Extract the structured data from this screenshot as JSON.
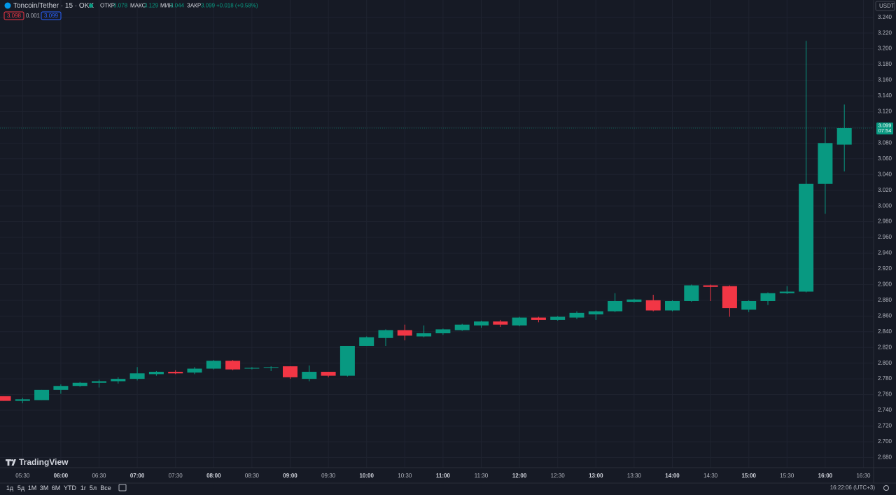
{
  "header": {
    "symbol": "Toncoin/Tether · 15 · OKX",
    "open_label": "ОТКР",
    "open": 3.078,
    "high_label": "МАКС",
    "high": 3.129,
    "low_label": "МИН",
    "low": 3.044,
    "close_label": "ЗАКР",
    "close": 3.099,
    "change": "+0.018 (+0.58%)",
    "bid": 3.098,
    "spread": 0.001,
    "ask": 3.099,
    "currency": "USDT"
  },
  "chart_data": {
    "type": "candlestick",
    "categories": [
      null,
      "05:30",
      null,
      "06:00",
      null,
      "06:30",
      null,
      "07:00",
      null,
      "07:30",
      null,
      "08:00",
      null,
      "08:30",
      null,
      "09:00",
      null,
      "09:30",
      null,
      "10:00",
      null,
      "10:30",
      null,
      "11:00",
      null,
      "11:30",
      null,
      "12:00",
      null,
      "12:30",
      null,
      "13:00",
      null,
      "13:30",
      null,
      "14:00",
      null,
      "14:30",
      null,
      "15:00",
      null,
      "15:30",
      null,
      "16:00",
      null,
      "16:30"
    ],
    "open": [
      2.758,
      2.752,
      2.753,
      2.766,
      2.771,
      2.775,
      2.777,
      2.78,
      2.786,
      2.789,
      2.788,
      2.793,
      2.803,
      2.793,
      2.795,
      2.796,
      2.78,
      2.789,
      2.784,
      2.822,
      2.832,
      2.842,
      2.834,
      2.838,
      2.842,
      2.848,
      2.853,
      2.848,
      2.858,
      2.855,
      2.858,
      2.862,
      2.866,
      2.878,
      2.88,
      2.867,
      2.879,
      2.899,
      2.898,
      2.868,
      2.879,
      2.889,
      2.891,
      3.028,
      3.078,
      null
    ],
    "high": [
      2.758,
      2.756,
      2.766,
      2.773,
      2.776,
      2.779,
      2.782,
      2.795,
      2.79,
      2.791,
      2.795,
      2.804,
      2.804,
      2.795,
      2.796,
      2.796,
      2.797,
      2.789,
      2.822,
      2.834,
      2.843,
      2.849,
      2.848,
      2.844,
      2.85,
      2.854,
      2.855,
      2.859,
      2.859,
      2.86,
      2.866,
      2.867,
      2.889,
      2.882,
      2.887,
      2.88,
      2.9,
      2.9,
      2.899,
      2.88,
      2.89,
      2.898,
      3.21,
      3.1,
      3.129,
      null
    ],
    "low": [
      2.752,
      2.749,
      2.753,
      2.761,
      2.77,
      2.769,
      2.774,
      2.778,
      2.784,
      2.786,
      2.786,
      2.792,
      2.791,
      2.792,
      2.79,
      2.78,
      2.777,
      2.782,
      2.783,
      2.822,
      2.822,
      2.829,
      2.833,
      2.836,
      2.841,
      2.845,
      2.846,
      2.847,
      2.852,
      2.854,
      2.856,
      2.855,
      2.865,
      2.877,
      2.866,
      2.866,
      2.878,
      2.879,
      2.859,
      2.865,
      2.874,
      2.888,
      2.89,
      2.99,
      3.044,
      null
    ],
    "close": [
      2.752,
      2.754,
      2.766,
      2.771,
      2.775,
      2.777,
      2.78,
      2.787,
      2.789,
      2.787,
      2.793,
      2.803,
      2.792,
      2.794,
      2.795,
      2.782,
      2.789,
      2.784,
      2.822,
      2.833,
      2.842,
      2.835,
      2.838,
      2.843,
      2.849,
      2.853,
      2.849,
      2.858,
      2.855,
      2.859,
      2.864,
      2.866,
      2.879,
      2.881,
      2.867,
      2.879,
      2.899,
      2.897,
      2.87,
      2.879,
      2.889,
      2.891,
      3.028,
      3.08,
      3.099,
      null
    ],
    "up_color": "#089981",
    "down_color": "#f23645",
    "ylim": [
      2.667,
      3.262
    ],
    "yticks": [
      {
        "value": 2.68,
        "label": "2.680"
      },
      {
        "value": 2.7,
        "label": "2.700"
      },
      {
        "value": 2.72,
        "label": "2.720"
      },
      {
        "value": 2.74,
        "label": "2.740"
      },
      {
        "value": 2.76,
        "label": "2.760"
      },
      {
        "value": 2.78,
        "label": "2.780"
      },
      {
        "value": 2.8,
        "label": "2.800"
      },
      {
        "value": 2.82,
        "label": "2.820"
      },
      {
        "value": 2.84,
        "label": "2.840"
      },
      {
        "value": 2.86,
        "label": "2.860"
      },
      {
        "value": 2.88,
        "label": "2.880"
      },
      {
        "value": 2.9,
        "label": "2.900"
      },
      {
        "value": 2.92,
        "label": "2.920"
      },
      {
        "value": 2.94,
        "label": "2.940"
      },
      {
        "value": 2.96,
        "label": "2.960"
      },
      {
        "value": 2.98,
        "label": "2.980"
      },
      {
        "value": 3.0,
        "label": "3.000"
      },
      {
        "value": 3.02,
        "label": "3.020"
      },
      {
        "value": 3.04,
        "label": "3.040"
      },
      {
        "value": 3.06,
        "label": "3.060"
      },
      {
        "value": 3.08,
        "label": "3.080"
      },
      {
        "value": 3.1,
        "label": "3.100"
      },
      {
        "value": 3.12,
        "label": "3.120"
      },
      {
        "value": 3.14,
        "label": "3.140"
      },
      {
        "value": 3.16,
        "label": "3.160"
      },
      {
        "value": 3.18,
        "label": "3.180"
      },
      {
        "value": 3.2,
        "label": "3.200"
      },
      {
        "value": 3.22,
        "label": "3.220"
      },
      {
        "value": 3.24,
        "label": "3.240"
      }
    ],
    "grid": true,
    "last_price": 3.099,
    "countdown": "07:54"
  },
  "footer": {
    "logo": "TradingView",
    "ranges": [
      "1д",
      "5д",
      "1М",
      "3М",
      "6М",
      "YTD",
      "1г",
      "5л",
      "Все"
    ],
    "clock": "16:22:06 (UTC+3)"
  }
}
